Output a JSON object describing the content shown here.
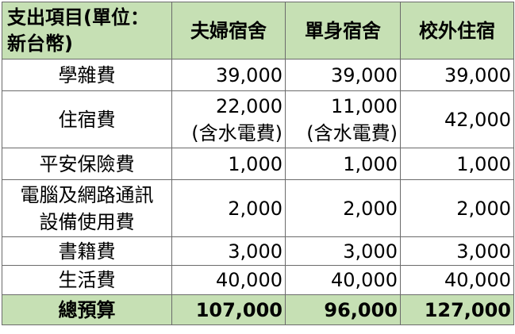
{
  "header": {
    "item": [
      "支出項目(單位：",
      "新台幣)"
    ],
    "cols": [
      "夫婦宿舍",
      "單身宿舍",
      "校外住宿"
    ]
  },
  "rows": [
    {
      "label": [
        "學雜費"
      ],
      "values": [
        [
          "39,000"
        ],
        [
          "39,000"
        ],
        [
          "39,000"
        ]
      ]
    },
    {
      "label": [
        "住宿費"
      ],
      "values": [
        [
          "22,000",
          "(含水電費)"
        ],
        [
          "11,000",
          "(含水電費)"
        ],
        [
          "42,000"
        ]
      ]
    },
    {
      "label": [
        "平安保險費"
      ],
      "values": [
        [
          "1,000"
        ],
        [
          "1,000"
        ],
        [
          "1,000"
        ]
      ]
    },
    {
      "label": [
        "電腦及網路通訊",
        "設備使用費"
      ],
      "values": [
        [
          "2,000"
        ],
        [
          "2,000"
        ],
        [
          "2,000"
        ]
      ]
    },
    {
      "label": [
        "書籍費"
      ],
      "values": [
        [
          "3,000"
        ],
        [
          "3,000"
        ],
        [
          "3,000"
        ]
      ]
    },
    {
      "label": [
        "生活費"
      ],
      "values": [
        [
          "40,000"
        ],
        [
          "40,000"
        ],
        [
          "40,000"
        ]
      ]
    }
  ],
  "total": {
    "label": "總預算",
    "values": [
      "107,000",
      "96,000",
      "127,000"
    ]
  },
  "colors": {
    "header_bg": "#c6e0b4",
    "border": "#6b6b6b"
  }
}
